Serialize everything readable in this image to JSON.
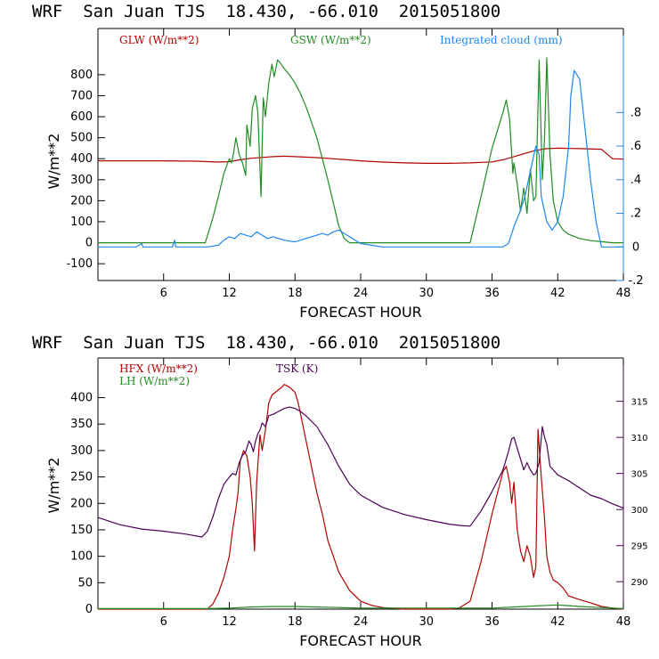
{
  "chart_data": [
    {
      "type": "line",
      "header": "WRF  San Juan TJS  18.430, -66.010  2015051800",
      "xlabel": "FORECAST HOUR",
      "ylabel": "W/m**2",
      "xlim": [
        0,
        48
      ],
      "x_ticks": [
        6,
        12,
        18,
        24,
        30,
        36,
        42,
        48
      ],
      "ylim": [
        -180,
        1020
      ],
      "y_ticks": [
        -100,
        0,
        100,
        200,
        300,
        400,
        500,
        600,
        700,
        800
      ],
      "y2lim": [
        -0.2,
        1.3
      ],
      "y2_ticks": [
        -0.2,
        0,
        0.2,
        0.4,
        0.6,
        0.8
      ],
      "y2_tick_labels": [
        "-.2",
        "0",
        ".2",
        ".4",
        ".6",
        ".8"
      ],
      "grid": false,
      "series": [
        {
          "name": "GLW (W/m**2)",
          "color": "#b40000",
          "axis": "left",
          "x": [
            0,
            6,
            9,
            10,
            11,
            12,
            13,
            14,
            15,
            16,
            17,
            18,
            20,
            22,
            24,
            26,
            28,
            30,
            32,
            34,
            36,
            37,
            38,
            39,
            40,
            41,
            42,
            44,
            46,
            47,
            48
          ],
          "y": [
            390,
            390,
            388,
            386,
            384,
            386,
            395,
            402,
            406,
            410,
            412,
            410,
            405,
            398,
            390,
            384,
            380,
            378,
            378,
            380,
            385,
            395,
            410,
            425,
            440,
            448,
            450,
            448,
            445,
            400,
            398
          ]
        },
        {
          "name": "GSW (W/m**2)",
          "color": "#228b22",
          "axis": "left",
          "x": [
            0,
            9.8,
            10.5,
            11,
            11.5,
            12,
            12.2,
            12.4,
            12.6,
            12.9,
            13.2,
            13.5,
            13.6,
            13.9,
            14.1,
            14.4,
            14.6,
            14.9,
            15.1,
            15.3,
            15.6,
            15.9,
            16.1,
            16.4,
            16.6,
            17,
            17.5,
            18,
            18.5,
            19,
            20,
            21,
            22,
            22.5,
            23,
            34,
            35,
            36,
            37,
            37.3,
            37.6,
            37.9,
            38,
            38.3,
            38.6,
            38.9,
            39.2,
            39.5,
            39.8,
            40,
            40.3,
            40.6,
            40.8,
            41,
            41.3,
            41.6,
            42,
            42.5,
            43,
            44,
            45,
            46,
            47,
            48
          ],
          "y": [
            0,
            0,
            120,
            220,
            330,
            400,
            380,
            430,
            500,
            420,
            380,
            320,
            560,
            460,
            640,
            700,
            620,
            220,
            690,
            600,
            760,
            850,
            790,
            870,
            860,
            830,
            800,
            760,
            710,
            650,
            500,
            300,
            80,
            20,
            0,
            0,
            220,
            450,
            620,
            680,
            590,
            330,
            380,
            280,
            150,
            260,
            140,
            350,
            200,
            220,
            870,
            300,
            500,
            880,
            420,
            200,
            100,
            60,
            40,
            20,
            10,
            5,
            0,
            0
          ]
        },
        {
          "name": "Integrated cloud (mm)",
          "color": "#1c86ee",
          "axis": "right",
          "x": [
            0,
            3.5,
            4,
            4.1,
            6.8,
            7,
            7.1,
            10,
            11,
            11.5,
            12,
            12.5,
            13,
            13.5,
            14,
            14.5,
            15,
            15.5,
            16,
            16.5,
            17,
            18,
            19,
            20,
            20.5,
            21,
            21.5,
            22,
            22.5,
            23,
            24,
            25,
            26,
            27,
            28,
            36,
            37,
            37.5,
            38,
            38.5,
            39,
            39.5,
            40,
            40.3,
            40.5,
            41,
            41.5,
            42,
            42.5,
            43,
            43.2,
            43.5,
            44,
            44.5,
            45,
            45.5,
            46,
            47,
            48
          ],
          "y": [
            0,
            0,
            0.02,
            0,
            0,
            0.04,
            0,
            0,
            0.01,
            0.04,
            0.06,
            0.05,
            0.08,
            0.07,
            0.06,
            0.09,
            0.07,
            0.05,
            0.06,
            0.05,
            0.04,
            0.03,
            0.05,
            0.07,
            0.08,
            0.07,
            0.09,
            0.1,
            0.08,
            0.06,
            0.02,
            0.01,
            0,
            0,
            0,
            0,
            0,
            0.02,
            0.12,
            0.2,
            0.3,
            0.45,
            0.6,
            0.55,
            0.3,
            0.15,
            0.1,
            0.15,
            0.3,
            0.6,
            0.9,
            1.05,
            1.0,
            0.7,
            0.4,
            0.15,
            0,
            0,
            0
          ]
        }
      ]
    },
    {
      "type": "line",
      "header": "WRF  San Juan TJS  18.430, -66.010  2015051800",
      "xlabel": "FORECAST HOUR",
      "ylabel": "W/m**2",
      "xlim": [
        0,
        48
      ],
      "x_ticks": [
        6,
        12,
        18,
        24,
        30,
        36,
        42,
        48
      ],
      "ylim": [
        0,
        475
      ],
      "y_ticks": [
        0,
        50,
        100,
        150,
        200,
        250,
        300,
        350,
        400
      ],
      "y2lim": [
        286.2,
        321
      ],
      "y2_ticks": [
        290,
        295,
        300,
        305,
        310,
        315
      ],
      "grid": false,
      "series": [
        {
          "name": "HFX (W/m**2)",
          "color": "#b40000",
          "axis": "left",
          "x": [
            0,
            9,
            10,
            10.5,
            11,
            11.5,
            12,
            12.3,
            12.6,
            12.8,
            13,
            13.3,
            13.6,
            13.9,
            14.1,
            14.3,
            14.5,
            14.8,
            15,
            15.3,
            15.6,
            15.9,
            16.2,
            16.5,
            16.8,
            17,
            17.5,
            18,
            18.3,
            18.6,
            19,
            19.5,
            20,
            20.5,
            21,
            21.5,
            22,
            23,
            24,
            25,
            26,
            28,
            30,
            32,
            33,
            34,
            35,
            36,
            37,
            37.3,
            37.6,
            37.8,
            38,
            38.3,
            38.6,
            38.9,
            39.2,
            39.5,
            39.8,
            40,
            40.2,
            40.5,
            40.8,
            41,
            41.3,
            41.6,
            42,
            42.5,
            43,
            44,
            45,
            46,
            47,
            48
          ],
          "y": [
            0,
            0,
            0,
            10,
            30,
            60,
            100,
            150,
            190,
            220,
            280,
            300,
            290,
            250,
            200,
            110,
            240,
            330,
            300,
            340,
            390,
            405,
            410,
            415,
            420,
            425,
            420,
            410,
            390,
            360,
            320,
            270,
            220,
            180,
            130,
            100,
            70,
            35,
            15,
            7,
            3,
            0,
            0,
            0,
            2,
            15,
            90,
            180,
            260,
            270,
            240,
            200,
            240,
            150,
            110,
            90,
            120,
            100,
            60,
            80,
            340,
            250,
            170,
            100,
            70,
            55,
            50,
            40,
            25,
            18,
            12,
            5,
            2,
            0
          ]
        },
        {
          "name": "LH (W/m**2)",
          "color": "#228b22",
          "axis": "left",
          "x": [
            0,
            10,
            12,
            14,
            16,
            18,
            20,
            22,
            24,
            36,
            38,
            40,
            42,
            44,
            46,
            48
          ],
          "y": [
            1,
            1,
            2,
            4,
            5,
            5,
            4,
            3,
            2,
            2,
            4,
            6,
            8,
            5,
            3,
            1
          ]
        },
        {
          "name": "TSK (K)",
          "color": "#4b0055",
          "axis": "right",
          "x": [
            0,
            2,
            4,
            6,
            8,
            9.5,
            10,
            10.5,
            11,
            11.5,
            12,
            12.3,
            12.6,
            12.9,
            13.2,
            13.5,
            13.8,
            14,
            14.2,
            14.4,
            14.6,
            14.8,
            15,
            15.3,
            15.6,
            16,
            16.5,
            17,
            17.5,
            18,
            18.5,
            19,
            20,
            21,
            22,
            23,
            24,
            26,
            28,
            30,
            32,
            33,
            34,
            35,
            36,
            37,
            37.5,
            37.8,
            38,
            38.3,
            38.6,
            38.9,
            39.2,
            39.5,
            39.8,
            40,
            40.3,
            40.6,
            40.8,
            41,
            41.3,
            41.6,
            42,
            43,
            44,
            45,
            46,
            47,
            48
          ],
          "y": [
            298.9,
            297.9,
            297.3,
            297.0,
            296.6,
            296.2,
            297.0,
            299.0,
            301.5,
            303.5,
            304.5,
            305.0,
            304.8,
            306.5,
            307.5,
            308.0,
            309.5,
            309.0,
            308.0,
            309.5,
            310.5,
            311.0,
            312.0,
            311.5,
            313.0,
            313.2,
            313.6,
            314.0,
            314.2,
            314.0,
            313.6,
            313.0,
            311.5,
            309.0,
            306.0,
            303.5,
            302.0,
            300.3,
            299.3,
            298.6,
            298.0,
            297.8,
            297.7,
            299.8,
            302.5,
            305.5,
            308.0,
            309.8,
            310.0,
            308.5,
            307.0,
            305.5,
            306.5,
            305.5,
            304.8,
            305.0,
            306.5,
            311.5,
            310.0,
            309.0,
            306.0,
            305.5,
            304.8,
            304.0,
            303.0,
            302.0,
            301.5,
            300.8,
            300.2
          ]
        }
      ]
    }
  ]
}
